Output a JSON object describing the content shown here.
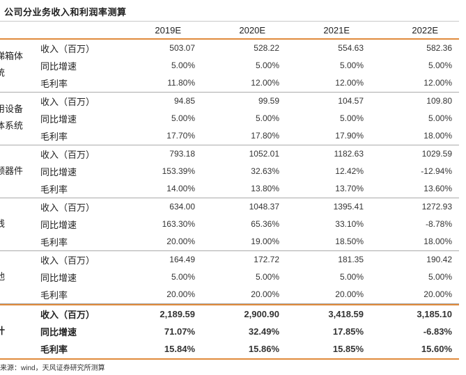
{
  "title": "公司分业务收入和利润率测算",
  "header": [
    "2019E",
    "2020E",
    "2021E",
    "2022E"
  ],
  "groups": [
    {
      "segment": [
        "梯箱体",
        "统"
      ],
      "rows": [
        {
          "label": "收入（百万）",
          "values": [
            "503.07",
            "528.22",
            "554.63",
            "582.36"
          ]
        },
        {
          "label": "同比增速",
          "values": [
            "5.00%",
            "5.00%",
            "5.00%",
            "5.00%"
          ]
        },
        {
          "label": "毛利率",
          "values": [
            "11.80%",
            "12.00%",
            "12.00%",
            "12.00%"
          ]
        }
      ]
    },
    {
      "segment": [
        "用设备",
        "体系统"
      ],
      "rows": [
        {
          "label": "收入（百万）",
          "values": [
            "94.85",
            "99.59",
            "104.57",
            "109.80"
          ]
        },
        {
          "label": "同比增速",
          "values": [
            "5.00%",
            "5.00%",
            "5.00%",
            "5.00%"
          ]
        },
        {
          "label": "毛利率",
          "values": [
            "17.70%",
            "17.80%",
            "17.90%",
            "18.00%"
          ]
        }
      ]
    },
    {
      "segment": [
        "频器件"
      ],
      "rows": [
        {
          "label": "收入（百万）",
          "values": [
            "793.18",
            "1052.01",
            "1182.63",
            "1029.59"
          ]
        },
        {
          "label": "同比增速",
          "values": [
            "153.39%",
            "32.63%",
            "12.42%",
            "-12.94%"
          ]
        },
        {
          "label": "毛利率",
          "values": [
            "14.00%",
            "13.80%",
            "13.70%",
            "13.60%"
          ]
        }
      ]
    },
    {
      "segment": [
        "线"
      ],
      "rows": [
        {
          "label": "收入（百万）",
          "values": [
            "634.00",
            "1048.37",
            "1395.41",
            "1272.93"
          ]
        },
        {
          "label": "同比增速",
          "values": [
            "163.30%",
            "65.36%",
            "33.10%",
            "-8.78%"
          ]
        },
        {
          "label": "毛利率",
          "values": [
            "20.00%",
            "19.00%",
            "18.50%",
            "18.00%"
          ]
        }
      ]
    },
    {
      "segment": [
        "他"
      ],
      "rows": [
        {
          "label": "收入（百万）",
          "values": [
            "164.49",
            "172.72",
            "181.35",
            "190.42"
          ]
        },
        {
          "label": "同比增速",
          "values": [
            "5.00%",
            "5.00%",
            "5.00%",
            "5.00%"
          ]
        },
        {
          "label": "毛利率",
          "values": [
            "20.00%",
            "20.00%",
            "20.00%",
            "20.00%"
          ]
        }
      ]
    }
  ],
  "total": {
    "segment": [
      "计"
    ],
    "rows": [
      {
        "label": "收入（百万）",
        "values": [
          "2,189.59",
          "2,900.90",
          "3,418.59",
          "3,185.10"
        ]
      },
      {
        "label": "同比增速",
        "values": [
          "71.07%",
          "32.49%",
          "17.85%",
          "-6.83%"
        ]
      },
      {
        "label": "毛利率",
        "values": [
          "15.84%",
          "15.86%",
          "15.85%",
          "15.60%"
        ]
      }
    ]
  },
  "source": "来源：wind，天风证券研究所测算"
}
